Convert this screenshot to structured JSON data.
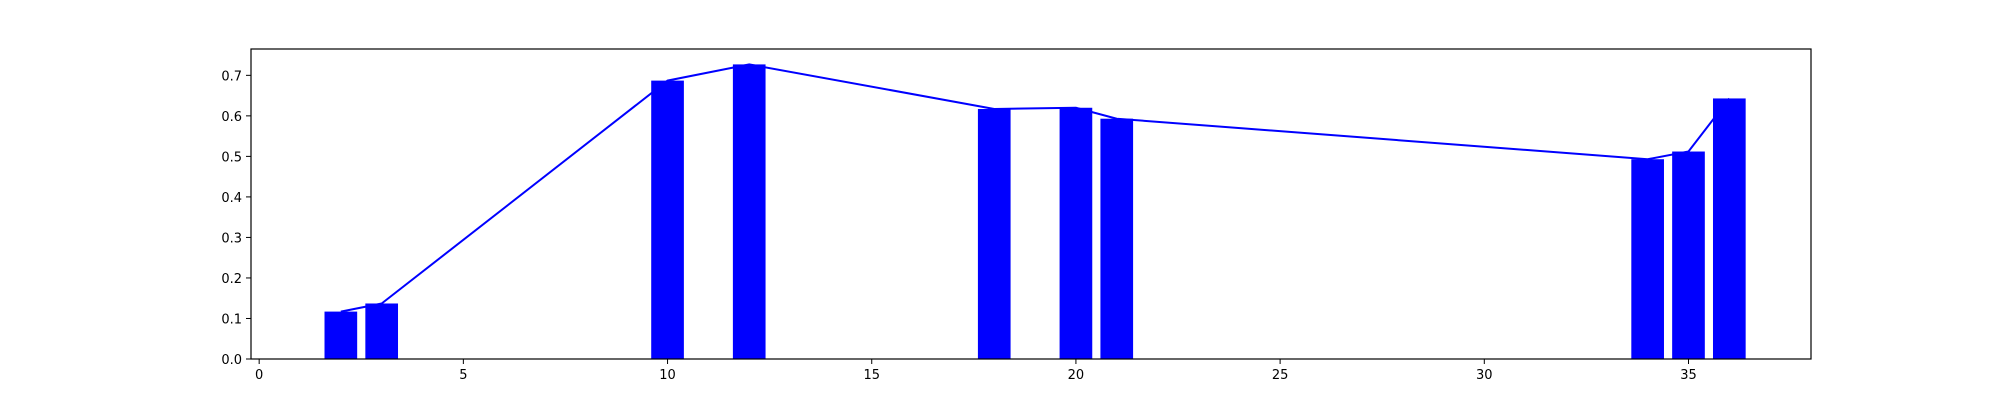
{
  "chart_data": {
    "type": "bar",
    "x": [
      2,
      3,
      10,
      12,
      18,
      20,
      21,
      34,
      35,
      36
    ],
    "values": [
      0.117,
      0.137,
      0.687,
      0.727,
      0.617,
      0.62,
      0.593,
      0.493,
      0.512,
      0.643
    ],
    "overlay_line": true,
    "xlim": [
      -0.2,
      38.0
    ],
    "ylim": [
      0,
      0.765
    ],
    "xticks": [
      0,
      5,
      10,
      15,
      20,
      25,
      30,
      35
    ],
    "yticks": [
      0.0,
      0.1,
      0.2,
      0.3,
      0.4,
      0.5,
      0.6,
      0.7
    ],
    "xtick_labels": [
      "0",
      "5",
      "10",
      "15",
      "20",
      "25",
      "30",
      "35"
    ],
    "ytick_labels": [
      "0.0",
      "0.1",
      "0.2",
      "0.3",
      "0.4",
      "0.5",
      "0.6",
      "0.7"
    ],
    "bar_width": 0.8,
    "color": "#0000ff",
    "grid": false,
    "title": "",
    "xlabel": "",
    "ylabel": ""
  }
}
